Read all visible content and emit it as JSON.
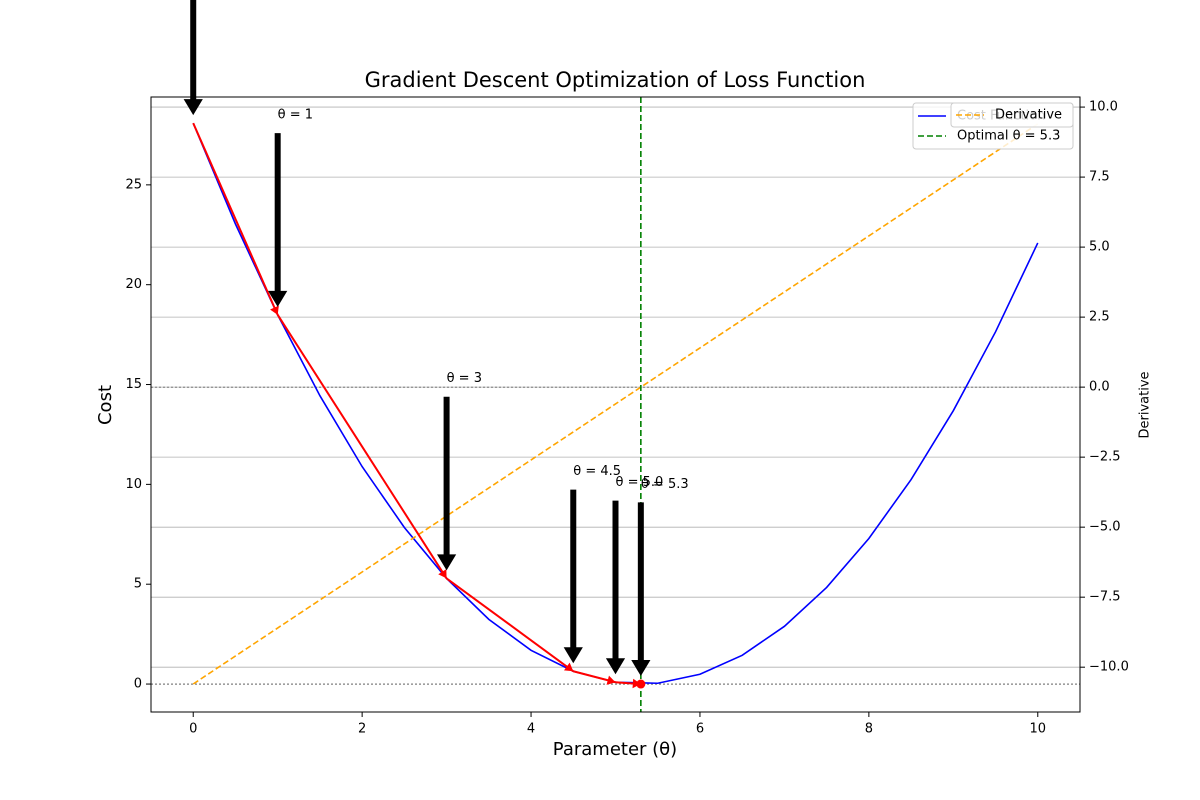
{
  "chart_data": {
    "type": "line",
    "title": "Gradient Descent Optimization of Loss Function",
    "xlabel": "Parameter (θ)",
    "ylabel": "Cost",
    "y2label": "Derivative",
    "xlim": [
      -0.5,
      10.5
    ],
    "ylim": [
      -1.4,
      29.4
    ],
    "y2lim": [
      -11.6,
      10.36
    ],
    "xticks": [
      0,
      2,
      4,
      6,
      8,
      10
    ],
    "yticks": [
      0,
      5,
      10,
      15,
      20,
      25
    ],
    "y2ticks": [
      {
        "value": 10,
        "label": "10.0"
      },
      {
        "value": 7.5,
        "label": "7.5"
      },
      {
        "value": 5,
        "label": "5.0"
      },
      {
        "value": 2.5,
        "label": "2.5"
      },
      {
        "value": 0,
        "label": "0.0"
      },
      {
        "value": -2.5,
        "label": "−2.5"
      },
      {
        "value": -5,
        "label": "−5.0"
      },
      {
        "value": -7.5,
        "label": "−7.5"
      },
      {
        "value": -10,
        "label": "−10.0"
      }
    ],
    "grid": true,
    "legend": "upper right",
    "series": [
      {
        "name": "Cost Function",
        "color": "#0000ff",
        "x": [
          0,
          0.5,
          1,
          1.5,
          2,
          2.5,
          3,
          3.5,
          4,
          4.5,
          5,
          5.5,
          6,
          6.5,
          7,
          7.5,
          8,
          8.5,
          9,
          9.5,
          10
        ],
        "values": [
          28.09,
          23.04,
          18.49,
          14.44,
          10.89,
          7.84,
          5.29,
          3.24,
          1.69,
          0.64,
          0.09,
          0.04,
          0.49,
          1.44,
          2.89,
          4.84,
          7.29,
          10.24,
          13.69,
          17.64,
          22.09
        ]
      },
      {
        "name": "Derivative",
        "color": "#ffa500",
        "axis": "y2",
        "x": [
          0,
          10
        ],
        "values": [
          -10.6,
          9.4
        ]
      }
    ],
    "optimal": {
      "name": "Optimal θ = 5.3",
      "value": 5.3,
      "color": "#008000"
    },
    "path": {
      "color": "#ff0000",
      "theta": [
        0,
        1,
        3,
        4.5,
        5.0,
        5.3
      ],
      "cost": [
        28.09,
        18.49,
        5.29,
        0.64,
        0.09,
        0
      ],
      "labels": [
        null,
        "θ = 1",
        "θ = 3",
        "θ = 4.5",
        "θ = 5.0",
        "θ = 5.3"
      ]
    }
  }
}
